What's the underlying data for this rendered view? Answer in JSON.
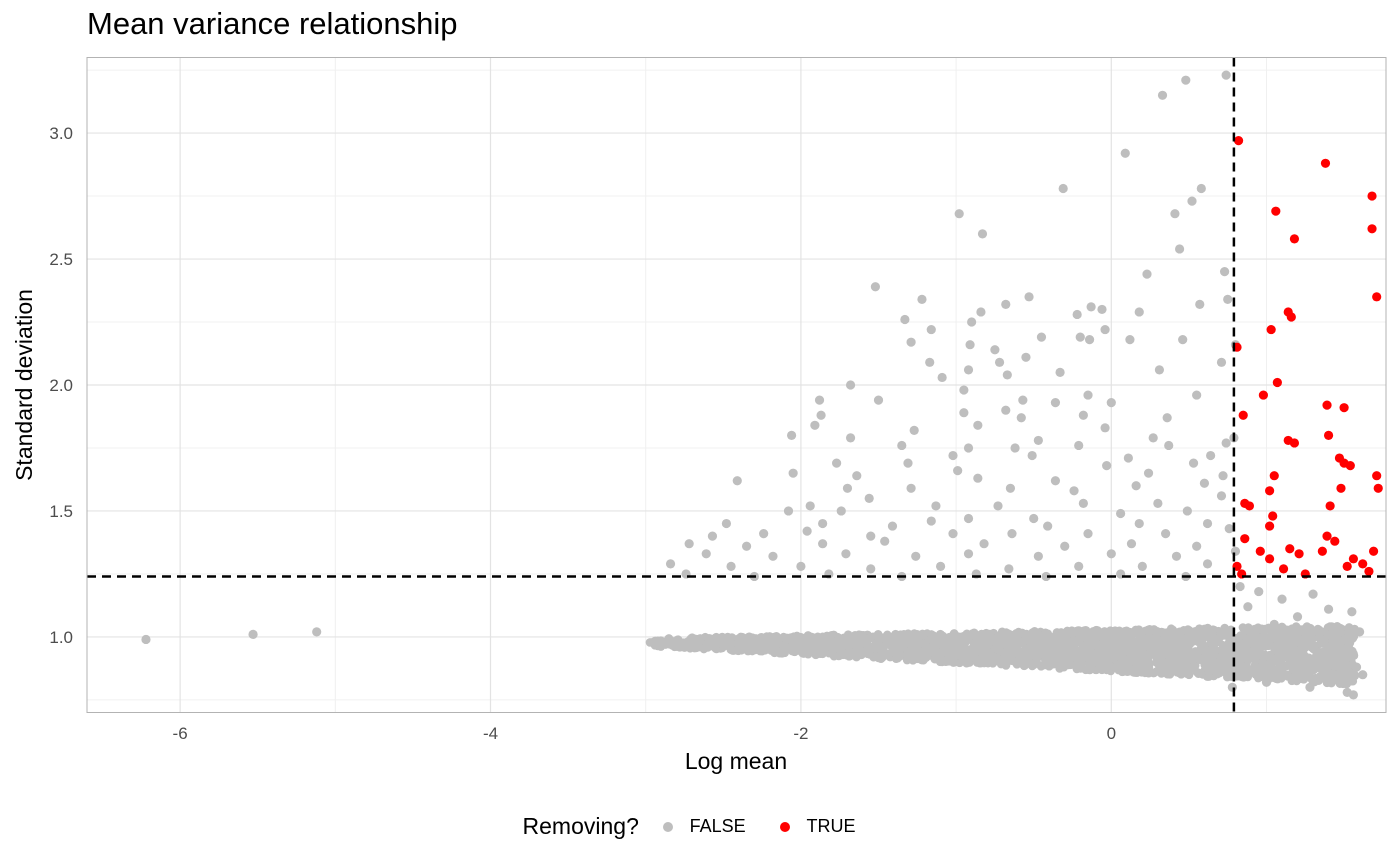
{
  "chart_data": {
    "type": "scatter",
    "title": "Mean variance relationship",
    "xlabel": "Log mean",
    "ylabel": "Standard deviation",
    "xlim": [
      -6.6,
      1.77
    ],
    "ylim": [
      0.7,
      3.3
    ],
    "x_ticks": [
      "-6",
      "-4",
      "-2",
      "0"
    ],
    "x_tick_values": [
      -6,
      -4,
      -2,
      0
    ],
    "y_ticks": [
      "1.0",
      "1.5",
      "2.0",
      "2.5",
      "3.0"
    ],
    "y_tick_values": [
      1.0,
      1.5,
      2.0,
      2.5,
      3.0
    ],
    "grid": true,
    "vline_x": 0.79,
    "hline_y": 1.24,
    "legend": {
      "title": "Removing?",
      "position": "bottom",
      "entries": [
        {
          "label": "FALSE",
          "color": "#bebebe"
        },
        {
          "label": "TRUE",
          "color": "#ff0000"
        }
      ]
    },
    "series": [
      {
        "name": "FALSE",
        "color": "#bebebe",
        "points": [
          [
            -6.22,
            0.99
          ],
          [
            -5.53,
            1.01
          ],
          [
            -5.12,
            1.02
          ],
          [
            0.33,
            3.15
          ],
          [
            0.48,
            3.21
          ],
          [
            0.74,
            3.23
          ],
          [
            0.09,
            2.92
          ],
          [
            -0.31,
            2.78
          ],
          [
            0.58,
            2.78
          ],
          [
            0.52,
            2.73
          ],
          [
            0.41,
            2.68
          ],
          [
            -0.98,
            2.68
          ],
          [
            -0.83,
            2.6
          ],
          [
            0.44,
            2.54
          ],
          [
            0.73,
            2.45
          ],
          [
            0.23,
            2.44
          ],
          [
            -1.52,
            2.39
          ],
          [
            -1.22,
            2.34
          ],
          [
            -0.53,
            2.35
          ],
          [
            -0.68,
            2.32
          ],
          [
            0.18,
            2.29
          ],
          [
            -0.13,
            2.31
          ],
          [
            -0.06,
            2.3
          ],
          [
            0.75,
            2.34
          ],
          [
            -0.84,
            2.29
          ],
          [
            -0.22,
            2.28
          ],
          [
            0.57,
            2.32
          ],
          [
            -1.33,
            2.26
          ],
          [
            -0.9,
            2.25
          ],
          [
            -0.45,
            2.19
          ],
          [
            -0.2,
            2.19
          ],
          [
            -1.16,
            2.22
          ],
          [
            -0.04,
            2.22
          ],
          [
            -0.14,
            2.18
          ],
          [
            -1.29,
            2.17
          ],
          [
            0.12,
            2.18
          ],
          [
            -0.91,
            2.16
          ],
          [
            0.46,
            2.18
          ],
          [
            -0.75,
            2.14
          ],
          [
            0.8,
            2.16
          ],
          [
            -0.55,
            2.11
          ],
          [
            -1.17,
            2.09
          ],
          [
            -0.92,
            2.06
          ],
          [
            -0.72,
            2.09
          ],
          [
            0.71,
            2.09
          ],
          [
            -0.33,
            2.05
          ],
          [
            -0.67,
            2.04
          ],
          [
            -1.09,
            2.03
          ],
          [
            -1.68,
            2.0
          ],
          [
            0.31,
            2.06
          ],
          [
            -0.95,
            1.98
          ],
          [
            -0.15,
            1.96
          ],
          [
            -1.88,
            1.94
          ],
          [
            -1.5,
            1.94
          ],
          [
            0.55,
            1.96
          ],
          [
            -0.57,
            1.94
          ],
          [
            0.0,
            1.93
          ],
          [
            -0.36,
            1.93
          ],
          [
            -1.87,
            1.88
          ],
          [
            -0.95,
            1.89
          ],
          [
            -0.18,
            1.88
          ],
          [
            -0.68,
            1.9
          ],
          [
            -0.58,
            1.87
          ],
          [
            0.36,
            1.87
          ],
          [
            -1.91,
            1.84
          ],
          [
            -1.27,
            1.82
          ],
          [
            -0.86,
            1.84
          ],
          [
            -0.04,
            1.83
          ],
          [
            -2.06,
            1.8
          ],
          [
            -1.68,
            1.79
          ],
          [
            -0.47,
            1.78
          ],
          [
            0.27,
            1.79
          ],
          [
            0.79,
            1.79
          ],
          [
            -1.35,
            1.76
          ],
          [
            -0.92,
            1.75
          ],
          [
            -0.62,
            1.75
          ],
          [
            -0.21,
            1.76
          ],
          [
            0.37,
            1.76
          ],
          [
            0.74,
            1.77
          ],
          [
            -1.02,
            1.72
          ],
          [
            -1.77,
            1.69
          ],
          [
            -0.51,
            1.72
          ],
          [
            0.11,
            1.71
          ],
          [
            0.64,
            1.72
          ],
          [
            -1.31,
            1.69
          ],
          [
            -0.99,
            1.66
          ],
          [
            -0.03,
            1.68
          ],
          [
            0.53,
            1.69
          ],
          [
            -2.05,
            1.65
          ],
          [
            -1.64,
            1.64
          ],
          [
            -0.86,
            1.63
          ],
          [
            -0.36,
            1.62
          ],
          [
            0.24,
            1.65
          ],
          [
            0.72,
            1.64
          ],
          [
            -2.41,
            1.62
          ],
          [
            -1.7,
            1.59
          ],
          [
            -1.29,
            1.59
          ],
          [
            -0.65,
            1.59
          ],
          [
            -0.24,
            1.58
          ],
          [
            0.16,
            1.6
          ],
          [
            0.6,
            1.61
          ],
          [
            -1.94,
            1.52
          ],
          [
            -1.56,
            1.55
          ],
          [
            -1.13,
            1.52
          ],
          [
            -0.73,
            1.52
          ],
          [
            -0.18,
            1.53
          ],
          [
            0.3,
            1.53
          ],
          [
            0.71,
            1.56
          ],
          [
            -2.08,
            1.5
          ],
          [
            -1.74,
            1.5
          ],
          [
            -0.92,
            1.47
          ],
          [
            -0.5,
            1.47
          ],
          [
            0.06,
            1.49
          ],
          [
            0.49,
            1.5
          ],
          [
            -2.48,
            1.45
          ],
          [
            -1.86,
            1.45
          ],
          [
            -1.41,
            1.44
          ],
          [
            -1.16,
            1.46
          ],
          [
            -0.41,
            1.44
          ],
          [
            0.18,
            1.45
          ],
          [
            0.62,
            1.45
          ],
          [
            -2.57,
            1.4
          ],
          [
            -2.24,
            1.41
          ],
          [
            -1.96,
            1.42
          ],
          [
            -1.55,
            1.4
          ],
          [
            -1.02,
            1.41
          ],
          [
            -0.64,
            1.41
          ],
          [
            -0.15,
            1.41
          ],
          [
            0.35,
            1.41
          ],
          [
            0.76,
            1.43
          ],
          [
            -2.72,
            1.37
          ],
          [
            -2.35,
            1.36
          ],
          [
            -1.86,
            1.37
          ],
          [
            -1.46,
            1.38
          ],
          [
            -0.82,
            1.37
          ],
          [
            -0.3,
            1.36
          ],
          [
            0.13,
            1.37
          ],
          [
            0.55,
            1.36
          ],
          [
            -2.61,
            1.33
          ],
          [
            -2.18,
            1.32
          ],
          [
            -1.71,
            1.33
          ],
          [
            -1.26,
            1.32
          ],
          [
            -0.92,
            1.33
          ],
          [
            -0.47,
            1.32
          ],
          [
            0.0,
            1.33
          ],
          [
            0.42,
            1.32
          ],
          [
            0.8,
            1.34
          ],
          [
            -2.84,
            1.29
          ],
          [
            -2.45,
            1.28
          ],
          [
            -2.0,
            1.28
          ],
          [
            -1.55,
            1.27
          ],
          [
            -1.1,
            1.28
          ],
          [
            -0.66,
            1.27
          ],
          [
            -0.21,
            1.28
          ],
          [
            0.2,
            1.28
          ],
          [
            0.62,
            1.29
          ],
          [
            -2.74,
            1.25
          ],
          [
            -2.3,
            1.24
          ],
          [
            -1.82,
            1.25
          ],
          [
            -1.35,
            1.24
          ],
          [
            -0.87,
            1.25
          ],
          [
            -0.42,
            1.24
          ],
          [
            0.06,
            1.25
          ],
          [
            0.48,
            1.24
          ],
          [
            0.83,
            1.2
          ],
          [
            0.95,
            1.18
          ],
          [
            1.1,
            1.15
          ],
          [
            1.3,
            1.17
          ],
          [
            1.4,
            1.11
          ],
          [
            0.88,
            1.12
          ],
          [
            1.2,
            1.08
          ],
          [
            1.55,
            1.1
          ],
          [
            1.05,
            1.05
          ],
          [
            1.42,
            1.04
          ],
          [
            1.6,
            1.02
          ],
          [
            1.25,
            0.98
          ],
          [
            1.5,
            0.95
          ],
          [
            0.95,
            0.93
          ],
          [
            1.35,
            0.9
          ],
          [
            1.58,
            0.88
          ],
          [
            1.1,
            0.86
          ],
          [
            1.45,
            0.83
          ],
          [
            1.62,
            0.85
          ],
          [
            1.28,
            0.8
          ],
          [
            1.52,
            0.78
          ],
          [
            1.56,
            0.77
          ],
          [
            1.0,
            0.82
          ],
          [
            0.85,
            0.88
          ],
          [
            0.78,
            0.8
          ]
        ]
      },
      {
        "name": "TRUE",
        "color": "#ff0000",
        "points": [
          [
            0.82,
            2.97
          ],
          [
            1.38,
            2.88
          ],
          [
            1.68,
            2.75
          ],
          [
            1.06,
            2.69
          ],
          [
            1.68,
            2.62
          ],
          [
            1.18,
            2.58
          ],
          [
            1.71,
            2.35
          ],
          [
            1.14,
            2.29
          ],
          [
            1.16,
            2.27
          ],
          [
            1.03,
            2.22
          ],
          [
            0.81,
            2.15
          ],
          [
            1.07,
            2.01
          ],
          [
            0.98,
            1.96
          ],
          [
            1.39,
            1.92
          ],
          [
            1.5,
            1.91
          ],
          [
            0.85,
            1.88
          ],
          [
            1.14,
            1.78
          ],
          [
            1.18,
            1.77
          ],
          [
            1.4,
            1.8
          ],
          [
            1.47,
            1.71
          ],
          [
            1.5,
            1.69
          ],
          [
            1.54,
            1.68
          ],
          [
            1.05,
            1.64
          ],
          [
            1.71,
            1.64
          ],
          [
            1.48,
            1.59
          ],
          [
            1.72,
            1.59
          ],
          [
            1.02,
            1.58
          ],
          [
            0.86,
            1.53
          ],
          [
            0.89,
            1.52
          ],
          [
            1.41,
            1.52
          ],
          [
            1.04,
            1.48
          ],
          [
            1.02,
            1.44
          ],
          [
            0.86,
            1.39
          ],
          [
            1.39,
            1.4
          ],
          [
            1.44,
            1.38
          ],
          [
            1.15,
            1.35
          ],
          [
            1.21,
            1.33
          ],
          [
            1.36,
            1.34
          ],
          [
            1.56,
            1.31
          ],
          [
            1.69,
            1.34
          ],
          [
            0.96,
            1.34
          ],
          [
            1.02,
            1.31
          ],
          [
            1.11,
            1.27
          ],
          [
            1.25,
            1.25
          ],
          [
            1.52,
            1.28
          ],
          [
            1.62,
            1.29
          ],
          [
            1.66,
            1.26
          ],
          [
            0.81,
            1.28
          ],
          [
            0.84,
            1.25
          ]
        ]
      }
    ]
  }
}
